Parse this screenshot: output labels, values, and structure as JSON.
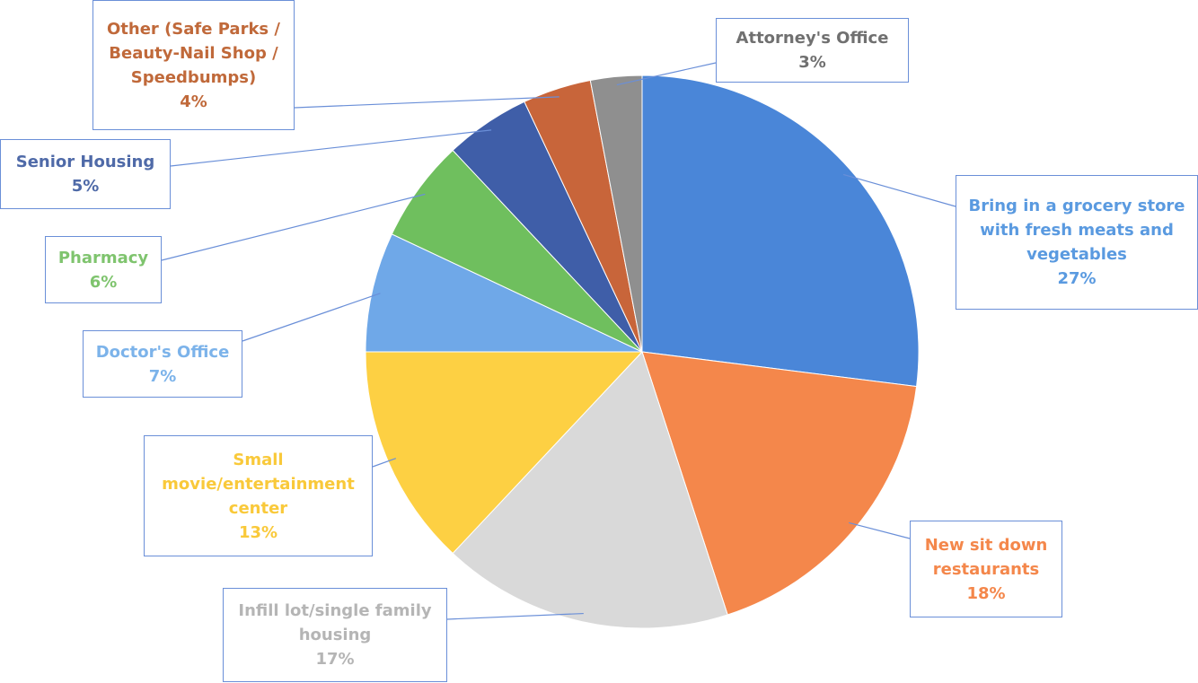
{
  "chart_data": {
    "type": "pie",
    "categories": [
      "Bring in a grocery store with fresh meats and vegetables",
      "New sit down restaurants",
      "Infill lot/single family housing",
      "Small movie/entertainment center",
      "Doctor's Office",
      "Pharmacy",
      "Senior Housing",
      "Other (Safe Parks / Beauty-Nail Shop / Speedbumps)",
      "Attorney's Office"
    ],
    "values": [
      27,
      18,
      17,
      13,
      7,
      6,
      5,
      4,
      3
    ],
    "value_labels": [
      "27%",
      "18%",
      "17%",
      "13%",
      "7%",
      "6%",
      "5%",
      "4%",
      "3%"
    ],
    "colors": [
      "#4a86d8",
      "#f4874b",
      "#d9d9d9",
      "#fdd043",
      "#6fa8e8",
      "#6fbf5e",
      "#3f5ea8",
      "#c8653a",
      "#8f8f8f"
    ],
    "label_colors": [
      "#5a9ae0",
      "#f4874b",
      "#b5b5b5",
      "#f9c93a",
      "#7cb3ea",
      "#7fc46e",
      "#4f6aa8",
      "#c0693a",
      "#707070"
    ]
  }
}
